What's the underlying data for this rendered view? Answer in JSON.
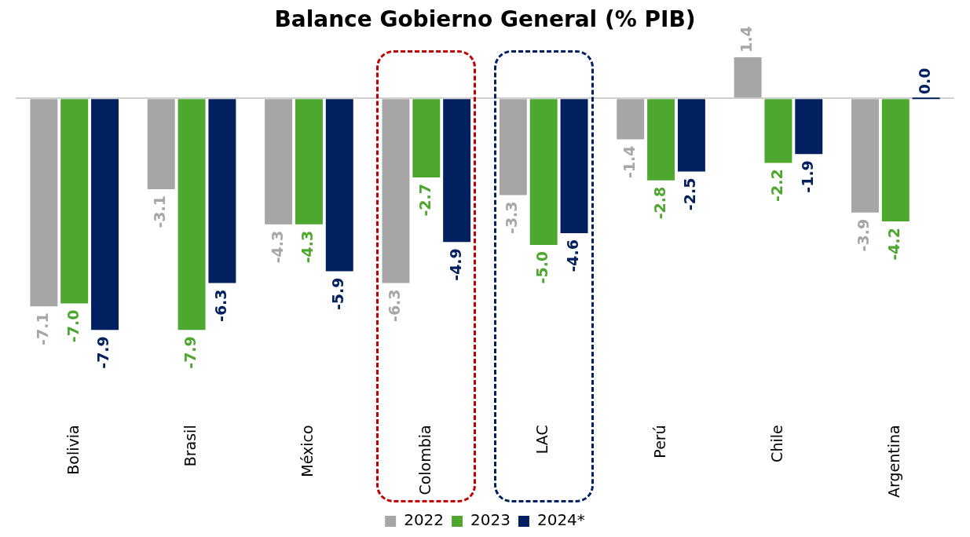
{
  "chart_data": {
    "type": "bar",
    "title": "Balance Gobierno General (% PIB)",
    "categories": [
      "Bolivia",
      "Brasil",
      "México",
      "Colombia",
      "LAC",
      "Perú",
      "Chile",
      "Argentina"
    ],
    "series": [
      {
        "name": "2022",
        "color": "#a6a6a6",
        "values": [
          -7.1,
          -3.1,
          -4.3,
          -6.3,
          -3.3,
          -1.4,
          1.4,
          -3.9
        ],
        "value_labels": [
          "-7.1",
          "-3.1",
          "-4.3",
          "-6.3",
          "-3.3",
          "-1.4",
          "1.4",
          "-3.9"
        ]
      },
      {
        "name": "2023",
        "color": "#4ea72e",
        "values": [
          -7.0,
          -7.9,
          -4.3,
          -2.7,
          -5.0,
          -2.8,
          -2.2,
          -4.2
        ],
        "value_labels": [
          "-7.0",
          "-7.9",
          "-4.3",
          "-2.7",
          "-5.0",
          "-2.8",
          "-2.2",
          "-4.2"
        ]
      },
      {
        "name": "2024*",
        "color": "#002060",
        "values": [
          -7.9,
          -6.3,
          -5.9,
          -4.9,
          -4.6,
          -2.5,
          -1.9,
          0.0
        ],
        "value_labels": [
          "-7.9",
          "-6.3",
          "-5.9",
          "-4.9",
          "-4.6",
          "-2.5",
          "-1.9",
          "0.0"
        ]
      }
    ],
    "grid": false,
    "legend": "bottom"
  }
}
